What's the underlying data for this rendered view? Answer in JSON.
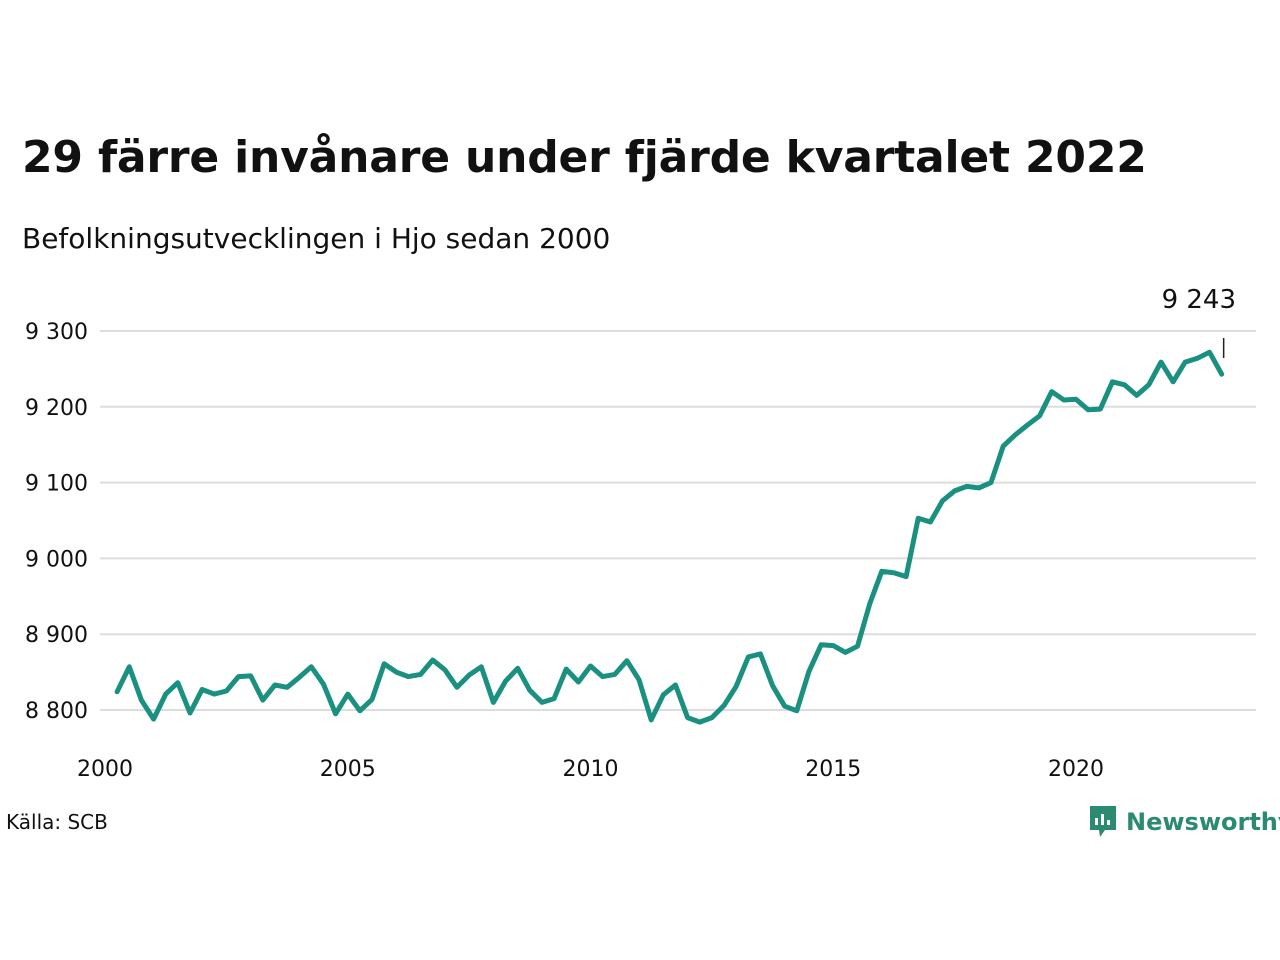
{
  "title": "29 färre invånare under fjärde kvartalet 2022",
  "subtitle": "Befolkningsutvecklingen i Hjo sedan 2000",
  "source": "Källa: SCB",
  "brand": {
    "name": "Newsworthy",
    "icon": "newsworthy-logo-icon",
    "color": "#2a8a72"
  },
  "colors": {
    "line": "#1a9180",
    "grid": "#dddddd",
    "text": "#111111"
  },
  "chart_data": {
    "type": "line",
    "title": "29 färre invånare under fjärde kvartalet 2022",
    "subtitle": "Befolkningsutvecklingen i Hjo sedan 2000",
    "xlabel": "",
    "ylabel": "",
    "xlim": [
      2000,
      2023.7
    ],
    "ylim": [
      8750,
      9330
    ],
    "x_ticks": [
      2000,
      2005,
      2010,
      2015,
      2020
    ],
    "x_tick_labels": [
      "2000",
      "2005",
      "2010",
      "2015",
      "2020"
    ],
    "y_ticks": [
      8800,
      8900,
      9000,
      9100,
      9200,
      9300
    ],
    "y_tick_labels": [
      "8 800",
      "8 900",
      "9 000",
      "9 100",
      "9 200",
      "9 300"
    ],
    "grid": true,
    "x_start": 2000.25,
    "x_step": 0.25,
    "series": [
      {
        "values": [
          8824,
          8857,
          8813,
          8788,
          8821,
          8836,
          8796,
          8827,
          8821,
          8825,
          8844,
          8845,
          8813,
          8833,
          8830,
          8843,
          8857,
          8834,
          8795,
          8821,
          8799,
          8814,
          8861,
          8850,
          8844,
          8847,
          8866,
          8853,
          8830,
          8846,
          8857,
          8810,
          8838,
          8855,
          8826,
          8810,
          8815,
          8854,
          8837,
          8858,
          8844,
          8847,
          8865,
          8840,
          8787,
          8820,
          8833,
          8790,
          8784,
          8790,
          8806,
          8831,
          8870,
          8874,
          8832,
          8805,
          8799,
          8851,
          8886,
          8885,
          8876,
          8884,
          8940,
          8983,
          8981,
          8976,
          9053,
          9048,
          9076,
          9089,
          9095,
          9093,
          9100,
          9148,
          9163,
          9176,
          9188,
          9220,
          9209,
          9210,
          9196,
          9197,
          9233,
          9229,
          9215,
          9229,
          9259,
          9233,
          9259,
          9264,
          9272,
          9243
        ]
      }
    ],
    "annotations": [
      {
        "x": 2023.0,
        "y": 9243,
        "text": "9 243"
      }
    ]
  }
}
